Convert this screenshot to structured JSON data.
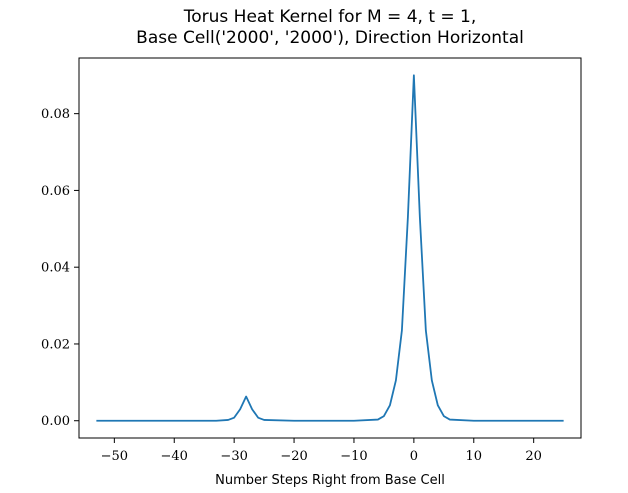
{
  "chart_data": {
    "type": "line",
    "title_lines": [
      "Torus Heat Kernel for M = 4, t = 1,",
      "Base Cell('2000', '2000'), Direction Horizontal"
    ],
    "xlabel": "Number Steps Right from Base Cell",
    "ylabel": "",
    "xlim": [
      -55.9,
      27.9
    ],
    "ylim": [
      -0.0045,
      0.0945
    ],
    "xticks": [
      -50,
      -40,
      -30,
      -20,
      -10,
      0,
      10,
      20
    ],
    "xtick_labels": [
      "−50",
      "−40",
      "−30",
      "−20",
      "−10",
      "0",
      "10",
      "20"
    ],
    "yticks": [
      0.0,
      0.02,
      0.04,
      0.06,
      0.08
    ],
    "ytick_labels": [
      "0.00",
      "0.02",
      "0.04",
      "0.06",
      "0.08"
    ],
    "grid": false,
    "series_color": "#1f77b4",
    "series": [
      {
        "x": [
          -53,
          -40,
          -33,
          -31,
          -30,
          -29,
          -28,
          -27,
          -26,
          -25,
          -20,
          -10,
          -6,
          -5,
          -4,
          -3,
          -2,
          -1,
          0,
          1,
          2,
          3,
          4,
          5,
          6,
          10,
          20,
          25
        ],
        "y": [
          0.0,
          0.0,
          0.0,
          0.0002,
          0.0008,
          0.003,
          0.0063,
          0.003,
          0.0008,
          0.0002,
          0.0,
          0.0,
          0.0003,
          0.0012,
          0.004,
          0.0105,
          0.0235,
          0.053,
          0.09,
          0.053,
          0.0235,
          0.0105,
          0.004,
          0.0012,
          0.0003,
          0.0,
          0.0,
          0.0
        ]
      }
    ]
  }
}
